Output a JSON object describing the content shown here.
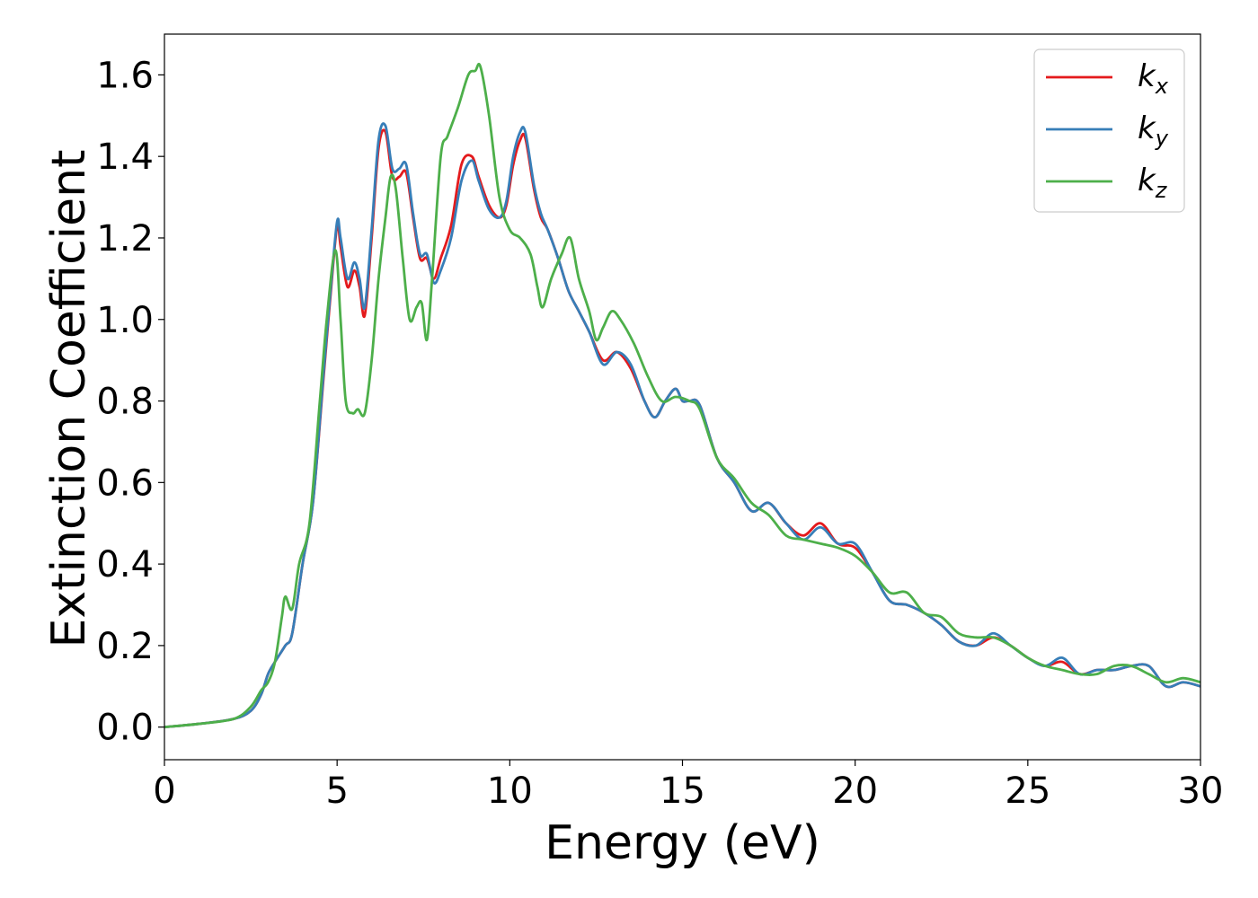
{
  "chart_data": {
    "type": "line",
    "title": "",
    "xlabel": "Energy (eV)",
    "ylabel": "Extinction Coefficient",
    "xlim": [
      0,
      30
    ],
    "ylim": [
      -0.08,
      1.7
    ],
    "xticks": [
      0,
      5,
      10,
      15,
      20,
      25,
      30
    ],
    "xtick_labels": [
      "0",
      "5",
      "10",
      "15",
      "20",
      "25",
      "30"
    ],
    "yticks": [
      0.0,
      0.2,
      0.4,
      0.6,
      0.8,
      1.0,
      1.2,
      1.4,
      1.6
    ],
    "ytick_labels": [
      "0.0",
      "0.2",
      "0.4",
      "0.6",
      "0.8",
      "1.0",
      "1.2",
      "1.4",
      "1.6"
    ],
    "grid": false,
    "legend_position": "top-right",
    "series": [
      {
        "name": "k_x",
        "legend_base": "k",
        "legend_sub": "x",
        "color": "#e41a1c",
        "x": [
          0,
          1,
          2,
          2.5,
          2.8,
          3.0,
          3.2,
          3.5,
          3.7,
          4.0,
          4.3,
          4.6,
          4.8,
          5.0,
          5.1,
          5.3,
          5.5,
          5.65,
          5.8,
          6.0,
          6.2,
          6.4,
          6.6,
          6.8,
          7.0,
          7.2,
          7.4,
          7.6,
          7.8,
          8.0,
          8.3,
          8.6,
          8.9,
          9.1,
          9.4,
          9.7,
          9.9,
          10.1,
          10.3,
          10.45,
          10.7,
          10.9,
          11.1,
          11.4,
          11.7,
          12.0,
          12.3,
          12.7,
          13.1,
          13.5,
          13.9,
          14.2,
          14.5,
          14.8,
          15.0,
          15.2,
          15.5,
          16.0,
          16.5,
          17.0,
          17.5,
          18.0,
          18.5,
          19.0,
          19.5,
          20.0,
          20.5,
          21.0,
          21.5,
          22.0,
          22.5,
          23.0,
          23.5,
          24.0,
          24.5,
          25.0,
          25.5,
          26.0,
          26.5,
          27.0,
          27.5,
          28.0,
          28.5,
          29.0,
          29.5,
          30.0
        ],
        "y": [
          0.0,
          0.008,
          0.02,
          0.04,
          0.08,
          0.13,
          0.16,
          0.2,
          0.23,
          0.4,
          0.55,
          0.85,
          1.05,
          1.23,
          1.18,
          1.08,
          1.12,
          1.08,
          1.01,
          1.2,
          1.42,
          1.46,
          1.35,
          1.35,
          1.36,
          1.25,
          1.15,
          1.15,
          1.1,
          1.15,
          1.23,
          1.38,
          1.4,
          1.35,
          1.28,
          1.25,
          1.28,
          1.38,
          1.44,
          1.445,
          1.32,
          1.25,
          1.22,
          1.15,
          1.07,
          1.02,
          0.97,
          0.9,
          0.92,
          0.88,
          0.8,
          0.76,
          0.8,
          0.83,
          0.8,
          0.8,
          0.79,
          0.66,
          0.6,
          0.53,
          0.55,
          0.5,
          0.47,
          0.5,
          0.45,
          0.44,
          0.38,
          0.31,
          0.3,
          0.28,
          0.25,
          0.21,
          0.2,
          0.22,
          0.2,
          0.17,
          0.15,
          0.16,
          0.13,
          0.14,
          0.14,
          0.15,
          0.15,
          0.1,
          0.11,
          0.1
        ]
      },
      {
        "name": "k_y",
        "legend_base": "k",
        "legend_sub": "y",
        "color": "#377eb8",
        "x": [
          0,
          1,
          2,
          2.5,
          2.8,
          3.0,
          3.2,
          3.5,
          3.7,
          4.0,
          4.3,
          4.6,
          4.8,
          5.0,
          5.1,
          5.3,
          5.5,
          5.65,
          5.8,
          6.0,
          6.2,
          6.4,
          6.6,
          6.8,
          7.0,
          7.2,
          7.4,
          7.6,
          7.8,
          8.0,
          8.3,
          8.6,
          8.9,
          9.1,
          9.4,
          9.7,
          9.9,
          10.1,
          10.3,
          10.45,
          10.7,
          10.9,
          11.1,
          11.4,
          11.7,
          12.0,
          12.3,
          12.7,
          13.1,
          13.5,
          13.9,
          14.2,
          14.5,
          14.8,
          15.0,
          15.2,
          15.5,
          16.0,
          16.5,
          17.0,
          17.5,
          18.0,
          18.5,
          19.0,
          19.5,
          20.0,
          20.5,
          21.0,
          21.5,
          22.0,
          22.5,
          23.0,
          23.5,
          24.0,
          24.5,
          25.0,
          25.5,
          26.0,
          26.5,
          27.0,
          27.5,
          28.0,
          28.5,
          29.0,
          29.5,
          30.0
        ],
        "y": [
          0.0,
          0.008,
          0.02,
          0.04,
          0.08,
          0.13,
          0.16,
          0.2,
          0.23,
          0.4,
          0.55,
          0.86,
          1.06,
          1.24,
          1.2,
          1.1,
          1.14,
          1.1,
          1.03,
          1.22,
          1.44,
          1.475,
          1.37,
          1.37,
          1.38,
          1.26,
          1.16,
          1.16,
          1.09,
          1.12,
          1.2,
          1.34,
          1.39,
          1.34,
          1.27,
          1.25,
          1.29,
          1.4,
          1.46,
          1.46,
          1.33,
          1.26,
          1.22,
          1.15,
          1.07,
          1.02,
          0.97,
          0.89,
          0.92,
          0.89,
          0.8,
          0.76,
          0.8,
          0.83,
          0.8,
          0.8,
          0.79,
          0.66,
          0.6,
          0.53,
          0.55,
          0.5,
          0.46,
          0.49,
          0.45,
          0.45,
          0.38,
          0.31,
          0.3,
          0.28,
          0.25,
          0.21,
          0.2,
          0.23,
          0.2,
          0.17,
          0.15,
          0.17,
          0.13,
          0.14,
          0.14,
          0.15,
          0.15,
          0.1,
          0.11,
          0.1
        ]
      },
      {
        "name": "k_z",
        "legend_base": "k",
        "legend_sub": "z",
        "color": "#4daf4a",
        "x": [
          0,
          1,
          2,
          2.5,
          2.8,
          3.0,
          3.2,
          3.4,
          3.5,
          3.7,
          3.9,
          4.2,
          4.5,
          4.7,
          4.95,
          5.1,
          5.25,
          5.45,
          5.6,
          5.8,
          6.0,
          6.2,
          6.4,
          6.55,
          6.7,
          6.9,
          7.1,
          7.3,
          7.45,
          7.6,
          7.75,
          8.0,
          8.2,
          8.5,
          8.8,
          9.0,
          9.15,
          9.4,
          9.7,
          10.0,
          10.3,
          10.6,
          10.8,
          10.95,
          11.2,
          11.5,
          11.75,
          12.0,
          12.3,
          12.5,
          12.7,
          12.95,
          13.2,
          13.6,
          14.0,
          14.4,
          14.8,
          15.2,
          15.5,
          16.0,
          16.5,
          17.0,
          17.5,
          18.0,
          18.5,
          19.0,
          19.5,
          20.0,
          20.5,
          21.0,
          21.5,
          22.0,
          22.5,
          23.0,
          23.5,
          24.0,
          24.5,
          25.0,
          25.5,
          26.0,
          26.5,
          27.0,
          27.5,
          28.0,
          28.5,
          29.0,
          29.5,
          30.0
        ],
        "y": [
          0.0,
          0.008,
          0.02,
          0.05,
          0.09,
          0.11,
          0.16,
          0.27,
          0.32,
          0.29,
          0.4,
          0.5,
          0.8,
          1.0,
          1.17,
          1.0,
          0.8,
          0.77,
          0.78,
          0.77,
          0.9,
          1.1,
          1.25,
          1.35,
          1.32,
          1.15,
          1.0,
          1.03,
          1.04,
          0.95,
          1.1,
          1.4,
          1.45,
          1.52,
          1.6,
          1.61,
          1.62,
          1.5,
          1.3,
          1.22,
          1.2,
          1.16,
          1.08,
          1.03,
          1.1,
          1.16,
          1.2,
          1.1,
          1.02,
          0.95,
          0.98,
          1.02,
          1.0,
          0.94,
          0.86,
          0.8,
          0.81,
          0.8,
          0.78,
          0.66,
          0.61,
          0.55,
          0.52,
          0.47,
          0.46,
          0.45,
          0.44,
          0.42,
          0.38,
          0.33,
          0.33,
          0.28,
          0.27,
          0.23,
          0.22,
          0.22,
          0.2,
          0.17,
          0.15,
          0.14,
          0.13,
          0.13,
          0.15,
          0.15,
          0.13,
          0.11,
          0.12,
          0.11
        ]
      }
    ]
  }
}
